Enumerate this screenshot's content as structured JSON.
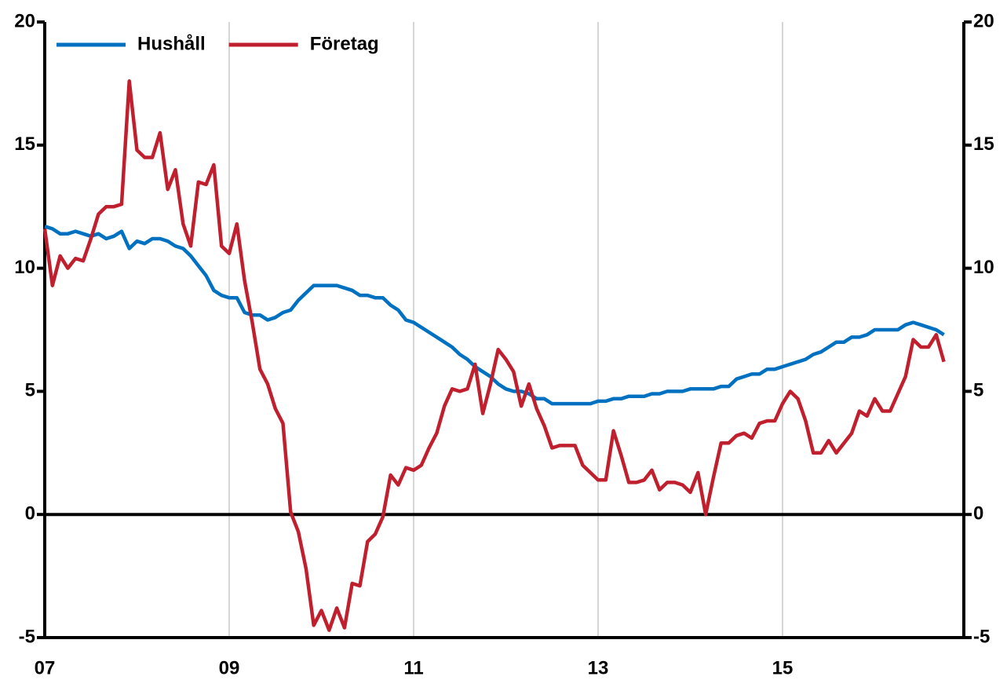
{
  "chart_data": {
    "type": "line",
    "categories": [
      "07",
      null,
      null,
      null,
      null,
      null,
      null,
      null,
      null,
      null,
      null,
      null,
      null,
      null,
      null,
      null,
      null,
      null,
      null,
      null,
      null,
      null,
      null,
      null,
      "09",
      null,
      null,
      null,
      null,
      null,
      null,
      null,
      null,
      null,
      null,
      null,
      null,
      null,
      null,
      null,
      null,
      null,
      null,
      null,
      null,
      null,
      null,
      null,
      "11",
      null,
      null,
      null,
      null,
      null,
      null,
      null,
      null,
      null,
      null,
      null,
      null,
      null,
      null,
      null,
      null,
      null,
      null,
      null,
      null,
      null,
      null,
      null,
      "13",
      null,
      null,
      null,
      null,
      null,
      null,
      null,
      null,
      null,
      null,
      null,
      null,
      null,
      null,
      null,
      null,
      null,
      null,
      null,
      null,
      null,
      null,
      null,
      "15",
      null,
      null,
      null,
      null,
      null,
      null,
      null,
      null,
      null,
      null,
      null,
      null,
      null,
      null,
      null,
      null,
      null,
      null,
      null,
      null,
      null
    ],
    "series": [
      {
        "name": "Hushåll",
        "color": "#0070c0",
        "values": [
          11.7,
          11.6,
          11.4,
          11.4,
          11.5,
          11.4,
          11.3,
          11.4,
          11.2,
          11.3,
          11.5,
          10.8,
          11.1,
          11.0,
          11.2,
          11.2,
          11.1,
          10.9,
          10.8,
          10.5,
          10.1,
          9.7,
          9.1,
          8.9,
          8.8,
          8.8,
          8.2,
          8.1,
          8.1,
          7.9,
          8.0,
          8.2,
          8.3,
          8.7,
          9.0,
          9.3,
          9.3,
          9.3,
          9.3,
          9.2,
          9.1,
          8.9,
          8.9,
          8.8,
          8.8,
          8.5,
          8.3,
          7.9,
          7.8,
          7.6,
          7.4,
          7.2,
          7.0,
          6.8,
          6.5,
          6.3,
          6.0,
          5.8,
          5.6,
          5.3,
          5.1,
          5.0,
          5.0,
          4.9,
          4.7,
          4.7,
          4.5,
          4.5,
          4.5,
          4.5,
          4.5,
          4.5,
          4.6,
          4.6,
          4.7,
          4.7,
          4.8,
          4.8,
          4.8,
          4.9,
          4.9,
          5.0,
          5.0,
          5.0,
          5.1,
          5.1,
          5.1,
          5.1,
          5.2,
          5.2,
          5.5,
          5.6,
          5.7,
          5.7,
          5.9,
          5.9,
          6.0,
          6.1,
          6.2,
          6.3,
          6.5,
          6.6,
          6.8,
          7.0,
          7.0,
          7.2,
          7.2,
          7.3,
          7.5,
          7.5,
          7.5,
          7.5,
          7.7,
          7.8,
          7.7,
          7.6,
          7.5,
          7.3
        ]
      },
      {
        "name": "Företag",
        "color": "#c0202e",
        "values": [
          11.6,
          9.3,
          10.5,
          10.0,
          10.4,
          10.3,
          11.2,
          12.2,
          12.5,
          12.5,
          12.6,
          17.6,
          14.8,
          14.5,
          14.5,
          15.5,
          13.2,
          14.0,
          11.8,
          10.9,
          13.5,
          13.4,
          14.2,
          10.9,
          10.6,
          11.8,
          9.5,
          7.8,
          5.9,
          5.3,
          4.3,
          3.7,
          0.1,
          -0.7,
          -2.2,
          -4.5,
          -3.9,
          -4.7,
          -3.8,
          -4.6,
          -2.8,
          -2.9,
          -1.1,
          -0.8,
          -0.1,
          1.6,
          1.2,
          1.9,
          1.8,
          2.0,
          2.7,
          3.3,
          4.4,
          5.1,
          5.0,
          5.1,
          6.1,
          4.1,
          5.3,
          6.7,
          6.3,
          5.8,
          4.4,
          5.3,
          4.3,
          3.6,
          2.7,
          2.8,
          2.8,
          2.8,
          2.0,
          1.7,
          1.4,
          1.4,
          3.4,
          2.4,
          1.3,
          1.3,
          1.4,
          1.8,
          1.0,
          1.3,
          1.3,
          1.2,
          0.9,
          1.7,
          0.0,
          1.5,
          2.9,
          2.9,
          3.2,
          3.3,
          3.1,
          3.7,
          3.8,
          3.8,
          4.5,
          5.0,
          4.7,
          3.8,
          2.5,
          2.5,
          3.0,
          2.5,
          2.9,
          3.3,
          4.2,
          4.0,
          4.7,
          4.2,
          4.2,
          4.9,
          5.6,
          7.1,
          6.8,
          6.8,
          7.3,
          6.2
        ]
      }
    ],
    "ylim": [
      -5,
      20
    ],
    "yticks": [
      20,
      15,
      10,
      5,
      0,
      -5
    ],
    "y2lim": [
      -5,
      20
    ],
    "y2ticks": [
      20,
      15,
      10,
      5,
      0,
      -5
    ],
    "grid": true,
    "legend": "top-left"
  }
}
